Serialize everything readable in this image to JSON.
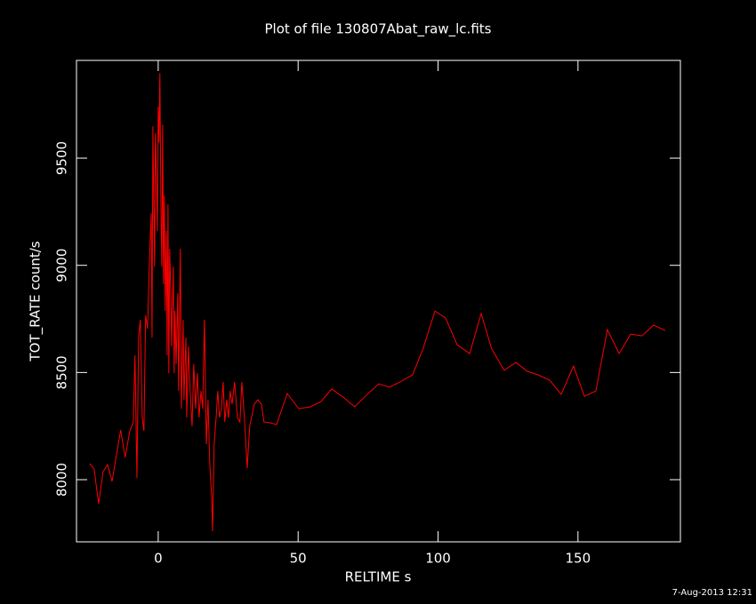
{
  "chart_data": {
    "type": "line",
    "title": "Plot of file 130807Abat_raw_lc.fits",
    "x_label": "RELTIME  s",
    "y_label": "TOT_RATE  count/s",
    "timestamp": "7-Aug-2013 12:31",
    "color": "#ff0000",
    "xlim": [
      -29.2,
      186.6
    ],
    "ylim": [
      7710,
      9956
    ],
    "xticks": [
      0,
      50,
      100,
      150
    ],
    "yticks": [
      8000,
      8500,
      9000,
      9500
    ],
    "x": [
      -24.5,
      -22.9,
      -21.3,
      -19.7,
      -18.1,
      -16.5,
      -13.4,
      -11.8,
      -10.2,
      -8.9,
      -8.3,
      -7.6,
      -7.0,
      -6.4,
      -5.7,
      -5.1,
      -4.5,
      -3.8,
      -3.2,
      -2.5,
      -2.2,
      -1.9,
      -1.3,
      -1.0,
      -0.6,
      -0.3,
      0.0,
      0.3,
      0.6,
      1.0,
      1.3,
      1.6,
      1.9,
      2.2,
      2.5,
      2.9,
      3.2,
      3.5,
      3.8,
      4.1,
      4.5,
      4.8,
      5.4,
      5.7,
      6.0,
      6.4,
      7.0,
      7.3,
      7.9,
      8.3,
      8.9,
      9.2,
      9.9,
      10.2,
      10.8,
      11.4,
      12.1,
      12.7,
      13.4,
      14.0,
      14.6,
      15.3,
      15.9,
      16.5,
      17.2,
      17.8,
      18.4,
      19.1,
      19.4,
      20.0,
      20.7,
      21.3,
      21.9,
      22.6,
      23.2,
      23.8,
      24.5,
      25.1,
      25.7,
      26.4,
      27.3,
      28.3,
      29.2,
      29.9,
      30.8,
      31.8,
      32.7,
      34.3,
      35.6,
      36.9,
      37.8,
      40.1,
      42.3,
      46.1,
      50.2,
      54.4,
      58.2,
      62.0,
      66.1,
      70.2,
      74.4,
      78.8,
      82.6,
      86.5,
      90.9,
      94.7,
      98.9,
      102.7,
      106.8,
      111.3,
      115.4,
      119.2,
      123.6,
      127.8,
      131.9,
      135.7,
      139.9,
      144.0,
      148.4,
      152.3,
      156.4,
      160.5,
      164.7,
      168.8,
      172.9,
      177.0,
      181.2
    ],
    "values": [
      8075,
      8050,
      7888,
      8037,
      8070,
      7992,
      8232,
      8104,
      8224,
      8269,
      8580,
      8008,
      8663,
      8746,
      8290,
      8228,
      8767,
      8704,
      8994,
      9243,
      8663,
      9649,
      8994,
      9616,
      9408,
      9160,
      9740,
      9574,
      9897,
      9243,
      8994,
      9657,
      8911,
      9325,
      8787,
      9160,
      8580,
      9284,
      8497,
      9077,
      8870,
      8622,
      8994,
      8497,
      8787,
      8539,
      8870,
      8414,
      9077,
      8331,
      8746,
      8373,
      8663,
      8290,
      8622,
      8414,
      8249,
      8539,
      8331,
      8497,
      8290,
      8414,
      8331,
      8746,
      8166,
      8373,
      8083,
      7917,
      7760,
      8166,
      8290,
      8414,
      8290,
      8331,
      8456,
      8269,
      8373,
      8290,
      8414,
      8352,
      8456,
      8290,
      8269,
      8456,
      8290,
      8054,
      8249,
      8352,
      8373,
      8352,
      8269,
      8265,
      8257,
      8402,
      8331,
      8340,
      8365,
      8423,
      8385,
      8340,
      8394,
      8447,
      8431,
      8456,
      8489,
      8613,
      8787,
      8754,
      8630,
      8588,
      8775,
      8609,
      8510,
      8547,
      8505,
      8489,
      8464,
      8398,
      8530,
      8389,
      8414,
      8700,
      8588,
      8679,
      8671,
      8721,
      8696
    ]
  }
}
